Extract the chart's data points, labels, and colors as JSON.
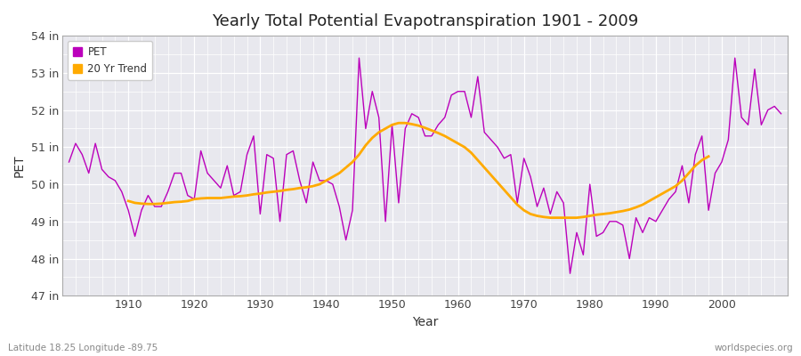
{
  "title": "Yearly Total Potential Evapotranspiration 1901 - 2009",
  "xlabel": "Year",
  "ylabel": "PET",
  "subtitle_left": "Latitude 18.25 Longitude -89.75",
  "subtitle_right": "worldspecies.org",
  "ylim": [
    47,
    54
  ],
  "yticks": [
    47,
    48,
    49,
    50,
    51,
    52,
    53,
    54
  ],
  "ytick_labels": [
    "47 in",
    "48 in",
    "49 in",
    "50 in",
    "51 in",
    "52 in",
    "53 in",
    "54 in"
  ],
  "xlim": [
    1901,
    2009
  ],
  "xticks": [
    1910,
    1920,
    1930,
    1940,
    1950,
    1960,
    1970,
    1980,
    1990,
    2000
  ],
  "pet_color": "#bb00bb",
  "trend_color": "#ffaa00",
  "fig_bg_color": "#ffffff",
  "plot_bg_color": "#e8e8ee",
  "grid_color": "#ffffff",
  "legend_labels": [
    "PET",
    "20 Yr Trend"
  ],
  "years": [
    1901,
    1902,
    1903,
    1904,
    1905,
    1906,
    1907,
    1908,
    1909,
    1910,
    1911,
    1912,
    1913,
    1914,
    1915,
    1916,
    1917,
    1918,
    1919,
    1920,
    1921,
    1922,
    1923,
    1924,
    1925,
    1926,
    1927,
    1928,
    1929,
    1930,
    1931,
    1932,
    1933,
    1934,
    1935,
    1936,
    1937,
    1938,
    1939,
    1940,
    1941,
    1942,
    1943,
    1944,
    1945,
    1946,
    1947,
    1948,
    1949,
    1950,
    1951,
    1952,
    1953,
    1954,
    1955,
    1956,
    1957,
    1958,
    1959,
    1960,
    1961,
    1962,
    1963,
    1964,
    1965,
    1966,
    1967,
    1968,
    1969,
    1970,
    1971,
    1972,
    1973,
    1974,
    1975,
    1976,
    1977,
    1978,
    1979,
    1980,
    1981,
    1982,
    1983,
    1984,
    1985,
    1986,
    1987,
    1988,
    1989,
    1990,
    1991,
    1992,
    1993,
    1994,
    1995,
    1996,
    1997,
    1998,
    1999,
    2000,
    2001,
    2002,
    2003,
    2004,
    2005,
    2006,
    2007,
    2008,
    2009
  ],
  "pet_values": [
    50.6,
    51.1,
    50.8,
    50.3,
    51.1,
    50.4,
    50.2,
    50.1,
    49.8,
    49.3,
    48.6,
    49.3,
    49.7,
    49.4,
    49.4,
    49.8,
    50.3,
    50.3,
    49.7,
    49.6,
    50.9,
    50.3,
    50.1,
    49.9,
    50.5,
    49.7,
    49.8,
    50.8,
    51.3,
    49.2,
    50.8,
    50.7,
    49.0,
    50.8,
    50.9,
    50.1,
    49.5,
    50.6,
    50.1,
    50.1,
    50.0,
    49.4,
    48.5,
    49.3,
    53.4,
    51.5,
    52.5,
    51.8,
    49.0,
    51.6,
    49.5,
    51.5,
    51.9,
    51.8,
    51.3,
    51.3,
    51.6,
    51.8,
    52.4,
    52.5,
    52.5,
    51.8,
    52.9,
    51.4,
    51.2,
    51.0,
    50.7,
    50.8,
    49.5,
    50.7,
    50.2,
    49.4,
    49.9,
    49.2,
    49.8,
    49.5,
    47.6,
    48.7,
    48.1,
    50.0,
    48.6,
    48.7,
    49.0,
    49.0,
    48.9,
    48.0,
    49.1,
    48.7,
    49.1,
    49.0,
    49.3,
    49.6,
    49.8,
    50.5,
    49.5,
    50.8,
    51.3,
    49.3,
    50.3,
    50.6,
    51.2,
    53.4,
    51.8,
    51.6,
    53.1,
    51.6,
    52.0,
    52.1,
    51.9
  ],
  "trend_values": [
    null,
    null,
    null,
    null,
    null,
    null,
    null,
    null,
    null,
    49.55,
    49.5,
    49.48,
    49.47,
    49.47,
    49.48,
    49.5,
    49.52,
    49.53,
    49.55,
    49.6,
    49.62,
    49.63,
    49.63,
    49.63,
    49.65,
    49.67,
    49.68,
    49.7,
    49.73,
    49.75,
    49.78,
    49.8,
    49.82,
    49.85,
    49.87,
    49.9,
    49.92,
    49.95,
    50.0,
    50.1,
    50.2,
    50.3,
    50.45,
    50.6,
    50.8,
    51.05,
    51.25,
    51.4,
    51.5,
    51.6,
    51.65,
    51.65,
    51.62,
    51.58,
    51.52,
    51.45,
    51.38,
    51.3,
    51.2,
    51.1,
    51.0,
    50.85,
    50.65,
    50.45,
    50.25,
    50.05,
    49.85,
    49.65,
    49.45,
    49.3,
    49.2,
    49.15,
    49.12,
    49.1,
    49.1,
    49.1,
    49.1,
    49.1,
    49.12,
    49.15,
    49.18,
    49.2,
    49.22,
    49.25,
    49.28,
    49.32,
    49.38,
    49.45,
    49.55,
    49.65,
    49.75,
    49.85,
    49.95,
    50.1,
    50.3,
    50.5,
    50.65,
    50.75,
    null,
    null,
    null,
    null,
    null
  ]
}
